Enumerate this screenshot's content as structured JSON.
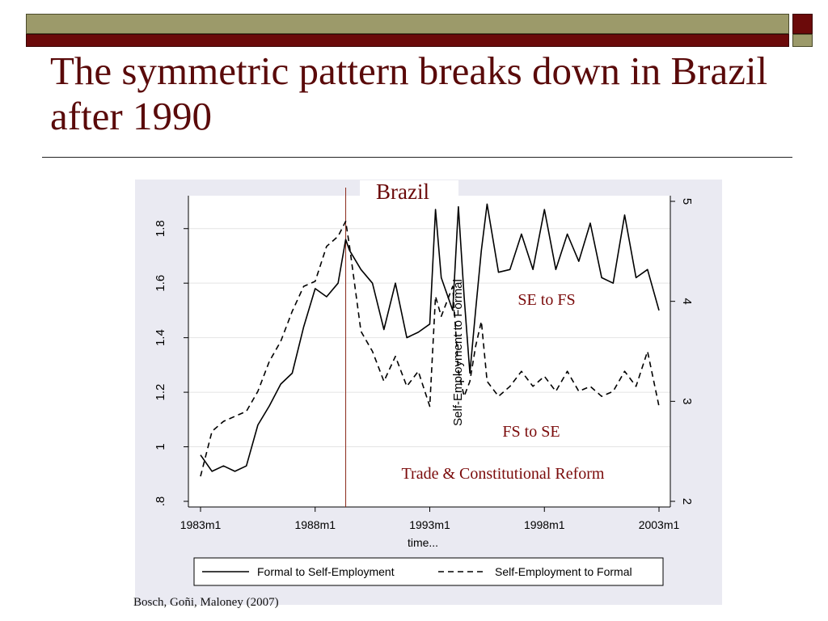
{
  "slide": {
    "title": "The symmetric pattern breaks down in Brazil after 1990",
    "citation": "Bosch, Goñi, Maloney (2007)"
  },
  "colors": {
    "olive": "#9c9a6a",
    "maroon": "#6b0a0a",
    "title": "#5a0a0a",
    "annotation": "#7a0a0a",
    "chart_bg": "#eaeaf2"
  },
  "chart_data": {
    "type": "line",
    "title": "Brazil",
    "xlabel": "time...",
    "ylabel": "",
    "y2label": "Self-Employment to Formal",
    "xlim": [
      "1983m1",
      "2003m1"
    ],
    "ylim": [
      0.8,
      1.9
    ],
    "y2lim": [
      2.0,
      5.0
    ],
    "x_ticks": [
      "1983m1",
      "1988m1",
      "1993m1",
      "1998m1",
      "2003m1"
    ],
    "y_ticks": [
      0.8,
      1.0,
      1.2,
      1.4,
      1.6,
      1.8
    ],
    "y_tick_labels": [
      ".8",
      "1",
      "1.2",
      "1.4",
      "1.6",
      "1.8"
    ],
    "y2_ticks": [
      2,
      3,
      4,
      5
    ],
    "grid": true,
    "legend": "bottom",
    "vertical_line": {
      "x": "1989m5"
    },
    "annotations": [
      "SE to FS",
      "FS to SE",
      "Trade & Constitutional Reform"
    ],
    "series": [
      {
        "name": "Formal to Self-Employment",
        "axis": "left",
        "style": "solid",
        "x": [
          "1983m1",
          "1983m7",
          "1984m1",
          "1984m7",
          "1985m1",
          "1985m7",
          "1986m1",
          "1986m7",
          "1987m1",
          "1987m7",
          "1988m1",
          "1988m7",
          "1989m1",
          "1989m5",
          "1989m7",
          "1990m1",
          "1990m7",
          "1991m1",
          "1991m7",
          "1992m1",
          "1992m7",
          "1993m1",
          "1993m4",
          "1993m7",
          "1994m1",
          "1994m4",
          "1994m7",
          "1994m10",
          "1995m1",
          "1995m4",
          "1995m7",
          "1996m1",
          "1996m7",
          "1997m1",
          "1997m7",
          "1998m1",
          "1998m7",
          "1999m1",
          "1999m7",
          "2000m1",
          "2000m7",
          "2001m1",
          "2001m7",
          "2002m1",
          "2002m7",
          "2003m1"
        ],
        "values": [
          0.97,
          0.91,
          0.93,
          0.91,
          0.93,
          1.08,
          1.15,
          1.23,
          1.27,
          1.44,
          1.58,
          1.55,
          1.6,
          1.76,
          1.72,
          1.65,
          1.6,
          1.43,
          1.6,
          1.4,
          1.42,
          1.45,
          1.87,
          1.62,
          1.5,
          1.88,
          1.55,
          1.27,
          1.5,
          1.72,
          1.89,
          1.64,
          1.65,
          1.78,
          1.65,
          1.87,
          1.65,
          1.78,
          1.68,
          1.82,
          1.62,
          1.6,
          1.85,
          1.62,
          1.65,
          1.5
        ]
      },
      {
        "name": "Self-Employment to Formal",
        "axis": "right",
        "style": "dashed",
        "x": [
          "1983m1",
          "1983m7",
          "1984m1",
          "1984m7",
          "1985m1",
          "1985m7",
          "1986m1",
          "1986m7",
          "1987m1",
          "1987m7",
          "1988m1",
          "1988m7",
          "1989m1",
          "1989m5",
          "1989m7",
          "1990m1",
          "1990m7",
          "1991m1",
          "1991m7",
          "1992m1",
          "1992m7",
          "1993m1",
          "1993m4",
          "1993m7",
          "1994m1",
          "1994m4",
          "1994m7",
          "1994m10",
          "1995m1",
          "1995m4",
          "1995m7",
          "1996m1",
          "1996m7",
          "1997m1",
          "1997m7",
          "1998m1",
          "1998m7",
          "1999m1",
          "1999m7",
          "2000m1",
          "2000m7",
          "2001m1",
          "2001m7",
          "2002m1",
          "2002m7",
          "2003m1"
        ],
        "values": [
          2.25,
          2.7,
          2.8,
          2.85,
          2.9,
          3.1,
          3.4,
          3.6,
          3.9,
          4.15,
          4.2,
          4.55,
          4.65,
          4.8,
          4.55,
          3.7,
          3.5,
          3.2,
          3.45,
          3.15,
          3.3,
          2.95,
          4.05,
          3.85,
          4.15,
          3.3,
          3.05,
          3.2,
          3.55,
          3.8,
          3.2,
          3.05,
          3.15,
          3.3,
          3.15,
          3.25,
          3.1,
          3.3,
          3.1,
          3.15,
          3.05,
          3.1,
          3.3,
          3.15,
          3.5,
          2.95
        ]
      }
    ]
  }
}
